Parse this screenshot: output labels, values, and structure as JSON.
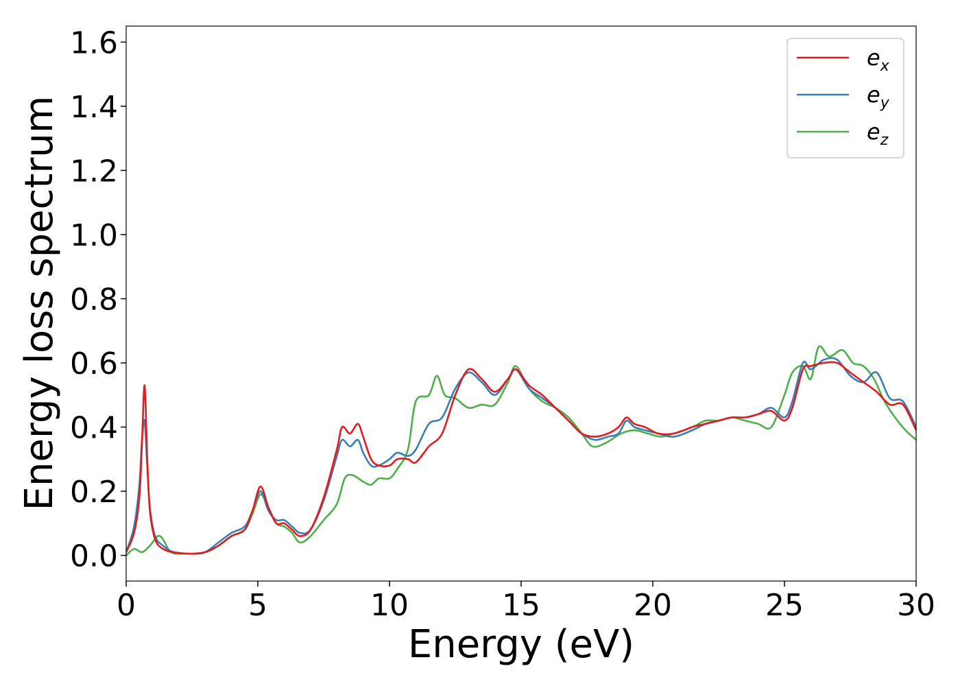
{
  "chart_data": {
    "type": "line",
    "xlabel": "Energy (eV)",
    "ylabel": "Energy loss spectrum",
    "xlim": [
      0,
      30
    ],
    "ylim": [
      -0.08,
      1.65
    ],
    "xticks": [
      0,
      5,
      10,
      15,
      20,
      25,
      30
    ],
    "xtick_labels": [
      "0",
      "5",
      "10",
      "15",
      "20",
      "25",
      "30"
    ],
    "yticks": [
      0.0,
      0.2,
      0.4,
      0.6,
      0.8,
      1.0,
      1.2,
      1.4,
      1.6
    ],
    "ytick_labels": [
      "0.0",
      "0.2",
      "0.4",
      "0.6",
      "0.8",
      "1.0",
      "1.2",
      "1.4",
      "1.6"
    ],
    "grid": false,
    "legend": "top-right",
    "series": [
      {
        "name": "e",
        "subscript": "x",
        "color": "#e41a1c",
        "x": [
          0,
          0.3,
          0.5,
          0.6,
          0.7,
          0.8,
          0.9,
          1.1,
          1.4,
          1.8,
          2.5,
          3.0,
          3.5,
          4.0,
          4.5,
          4.8,
          5.1,
          5.4,
          5.7,
          6.0,
          6.3,
          6.6,
          7.0,
          7.5,
          8.0,
          8.2,
          8.5,
          8.8,
          9.0,
          9.3,
          9.6,
          10.0,
          10.3,
          10.7,
          11.0,
          11.5,
          12.0,
          12.5,
          13.0,
          13.5,
          14.0,
          14.5,
          14.8,
          15.3,
          15.8,
          16.3,
          16.8,
          17.3,
          17.8,
          18.3,
          18.7,
          19.0,
          19.3,
          19.7,
          20.2,
          20.8,
          21.5,
          22.0,
          22.5,
          23.0,
          23.5,
          24.0,
          24.5,
          25.0,
          25.3,
          25.7,
          26.0,
          26.5,
          27.0,
          27.5,
          28.0,
          28.5,
          29.0,
          29.5,
          30.0
        ],
        "y": [
          0.01,
          0.07,
          0.18,
          0.35,
          0.53,
          0.3,
          0.14,
          0.05,
          0.02,
          0.01,
          0.005,
          0.01,
          0.03,
          0.06,
          0.08,
          0.14,
          0.215,
          0.15,
          0.1,
          0.1,
          0.08,
          0.06,
          0.08,
          0.18,
          0.33,
          0.4,
          0.38,
          0.41,
          0.37,
          0.3,
          0.28,
          0.28,
          0.3,
          0.3,
          0.29,
          0.34,
          0.38,
          0.5,
          0.58,
          0.55,
          0.51,
          0.55,
          0.58,
          0.53,
          0.5,
          0.46,
          0.42,
          0.38,
          0.37,
          0.38,
          0.4,
          0.43,
          0.41,
          0.4,
          0.38,
          0.38,
          0.4,
          0.41,
          0.42,
          0.43,
          0.43,
          0.44,
          0.45,
          0.42,
          0.46,
          0.58,
          0.59,
          0.6,
          0.6,
          0.57,
          0.54,
          0.51,
          0.47,
          0.47,
          0.39
        ]
      },
      {
        "name": "e",
        "subscript": "y",
        "color": "#377eb8",
        "x": [
          0,
          0.3,
          0.5,
          0.6,
          0.7,
          0.8,
          0.9,
          1.1,
          1.4,
          1.8,
          2.5,
          3.0,
          3.5,
          4.0,
          4.5,
          4.8,
          5.1,
          5.4,
          5.7,
          6.0,
          6.3,
          6.6,
          7.0,
          7.5,
          8.0,
          8.2,
          8.5,
          8.8,
          9.0,
          9.3,
          9.6,
          10.0,
          10.3,
          10.7,
          11.0,
          11.5,
          12.0,
          12.5,
          13.0,
          13.5,
          14.0,
          14.5,
          14.8,
          15.3,
          15.8,
          16.3,
          16.8,
          17.3,
          17.8,
          18.3,
          18.7,
          19.0,
          19.3,
          19.7,
          20.2,
          20.8,
          21.5,
          22.0,
          22.5,
          23.0,
          23.5,
          24.0,
          24.5,
          25.0,
          25.3,
          25.7,
          26.0,
          26.5,
          27.0,
          27.5,
          28.0,
          28.5,
          29.0,
          29.5,
          30.0
        ],
        "y": [
          0.01,
          0.09,
          0.22,
          0.36,
          0.42,
          0.28,
          0.15,
          0.06,
          0.03,
          0.01,
          0.005,
          0.01,
          0.04,
          0.07,
          0.09,
          0.14,
          0.2,
          0.14,
          0.11,
          0.11,
          0.09,
          0.07,
          0.08,
          0.17,
          0.31,
          0.36,
          0.34,
          0.36,
          0.32,
          0.28,
          0.28,
          0.3,
          0.32,
          0.31,
          0.33,
          0.41,
          0.43,
          0.52,
          0.57,
          0.54,
          0.5,
          0.55,
          0.58,
          0.52,
          0.49,
          0.46,
          0.42,
          0.38,
          0.36,
          0.37,
          0.38,
          0.42,
          0.4,
          0.39,
          0.38,
          0.37,
          0.39,
          0.41,
          0.42,
          0.43,
          0.43,
          0.44,
          0.46,
          0.43,
          0.48,
          0.6,
          0.58,
          0.61,
          0.61,
          0.56,
          0.54,
          0.57,
          0.49,
          0.48,
          0.4
        ]
      },
      {
        "name": "e",
        "subscript": "z",
        "color": "#4daf4a",
        "x": [
          0,
          0.3,
          0.6,
          0.9,
          1.2,
          1.4,
          1.7,
          2.2,
          3.0,
          3.5,
          4.0,
          4.5,
          4.8,
          5.1,
          5.4,
          5.7,
          6.0,
          6.3,
          6.6,
          7.0,
          7.5,
          8.0,
          8.3,
          8.6,
          9.0,
          9.3,
          9.6,
          10.0,
          10.3,
          10.7,
          11.0,
          11.5,
          11.8,
          12.1,
          12.5,
          13.0,
          13.5,
          14.0,
          14.5,
          14.8,
          15.3,
          15.8,
          16.3,
          16.8,
          17.3,
          17.7,
          18.2,
          18.8,
          19.3,
          19.8,
          20.3,
          20.8,
          21.5,
          22.0,
          22.5,
          23.0,
          23.5,
          24.0,
          24.5,
          25.0,
          25.3,
          25.7,
          26.0,
          26.3,
          26.7,
          27.2,
          27.6,
          28.0,
          28.4,
          28.8,
          29.2,
          29.6,
          30.0
        ],
        "y": [
          0.0,
          0.02,
          0.01,
          0.03,
          0.06,
          0.05,
          0.01,
          0.005,
          0.01,
          0.03,
          0.06,
          0.08,
          0.13,
          0.19,
          0.15,
          0.1,
          0.09,
          0.07,
          0.04,
          0.06,
          0.11,
          0.16,
          0.24,
          0.25,
          0.23,
          0.22,
          0.24,
          0.24,
          0.27,
          0.33,
          0.48,
          0.5,
          0.56,
          0.5,
          0.49,
          0.46,
          0.47,
          0.47,
          0.54,
          0.59,
          0.52,
          0.48,
          0.46,
          0.43,
          0.38,
          0.34,
          0.35,
          0.38,
          0.39,
          0.38,
          0.37,
          0.38,
          0.4,
          0.42,
          0.42,
          0.43,
          0.42,
          0.41,
          0.4,
          0.5,
          0.57,
          0.59,
          0.55,
          0.65,
          0.62,
          0.64,
          0.6,
          0.59,
          0.55,
          0.48,
          0.43,
          0.39,
          0.36
        ]
      }
    ]
  }
}
